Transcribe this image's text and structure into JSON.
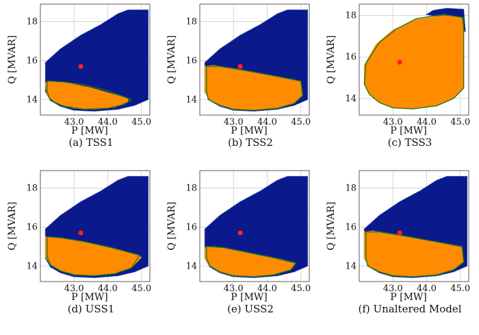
{
  "figure": {
    "colors": {
      "region": "#0a1a8c",
      "feasible": "#ff8c00",
      "hull": "#1f7a1f",
      "operating_point": "#ff2020",
      "grid": "#cccccc"
    }
  },
  "chart_data": [
    {
      "type": "scatter",
      "caption": "(a) TSS1",
      "xlabel": "P [MW]",
      "ylabel": "Q [MVAR]",
      "xticks": [
        "43.0",
        "44.0",
        "45.0"
      ],
      "yticks": [
        "14",
        "16",
        "18"
      ],
      "xlim": [
        42.0,
        45.25
      ],
      "ylim": [
        13.2,
        18.9
      ],
      "grid": true,
      "operating_point": {
        "x": 43.2,
        "y": 15.7
      },
      "outer_region": [
        [
          42.15,
          15.45
        ],
        [
          42.15,
          15.9
        ],
        [
          42.6,
          16.6
        ],
        [
          43.2,
          17.3
        ],
        [
          43.8,
          17.85
        ],
        [
          44.3,
          18.4
        ],
        [
          44.6,
          18.6
        ],
        [
          45.2,
          18.6
        ],
        [
          45.2,
          14.0
        ],
        [
          44.8,
          13.7
        ],
        [
          44.3,
          13.5
        ],
        [
          43.6,
          13.4
        ],
        [
          43.0,
          13.45
        ],
        [
          42.6,
          13.65
        ],
        [
          42.3,
          13.95
        ],
        [
          42.15,
          14.4
        ]
      ],
      "feasible_region": [
        [
          42.15,
          14.85
        ],
        [
          42.3,
          14.95
        ],
        [
          42.8,
          14.85
        ],
        [
          43.5,
          14.6
        ],
        [
          44.1,
          14.3
        ],
        [
          44.6,
          14.05
        ],
        [
          44.6,
          13.9
        ],
        [
          44.2,
          13.6
        ],
        [
          43.6,
          13.5
        ],
        [
          43.0,
          13.55
        ],
        [
          42.5,
          13.8
        ],
        [
          42.2,
          14.2
        ]
      ],
      "hull": [
        [
          42.2,
          14.95
        ],
        [
          42.7,
          14.9
        ],
        [
          43.3,
          14.75
        ],
        [
          44.0,
          14.45
        ],
        [
          44.7,
          14.0
        ],
        [
          44.5,
          13.75
        ],
        [
          44.0,
          13.55
        ],
        [
          43.3,
          13.5
        ],
        [
          42.7,
          13.65
        ],
        [
          42.3,
          13.95
        ],
        [
          42.2,
          14.4
        ]
      ]
    },
    {
      "type": "scatter",
      "caption": "(b) TSS2",
      "xlabel": "P [MW]",
      "ylabel": "Q [MVAR]",
      "xticks": [
        "43.0",
        "44.0",
        "45.0"
      ],
      "yticks": [
        "14",
        "16",
        "18"
      ],
      "xlim": [
        42.0,
        45.25
      ],
      "ylim": [
        13.2,
        18.9
      ],
      "grid": true,
      "operating_point": {
        "x": 43.2,
        "y": 15.7
      },
      "outer_region": [
        [
          42.15,
          15.45
        ],
        [
          42.15,
          15.9
        ],
        [
          42.6,
          16.6
        ],
        [
          43.2,
          17.3
        ],
        [
          43.8,
          17.85
        ],
        [
          44.3,
          18.4
        ],
        [
          44.6,
          18.6
        ],
        [
          45.2,
          18.6
        ],
        [
          45.2,
          14.0
        ],
        [
          44.8,
          13.7
        ],
        [
          44.3,
          13.5
        ],
        [
          43.6,
          13.4
        ],
        [
          43.0,
          13.45
        ],
        [
          42.6,
          13.65
        ],
        [
          42.3,
          13.95
        ],
        [
          42.15,
          14.4
        ]
      ],
      "feasible_region": [
        [
          42.15,
          15.7
        ],
        [
          42.4,
          15.75
        ],
        [
          43.0,
          15.6
        ],
        [
          43.8,
          15.35
        ],
        [
          44.5,
          15.1
        ],
        [
          45.0,
          14.9
        ],
        [
          45.05,
          14.2
        ],
        [
          44.8,
          13.8
        ],
        [
          44.3,
          13.55
        ],
        [
          43.6,
          13.45
        ],
        [
          43.0,
          13.5
        ],
        [
          42.6,
          13.7
        ],
        [
          42.3,
          14.0
        ],
        [
          42.15,
          14.4
        ]
      ],
      "hull": [
        [
          42.2,
          15.7
        ],
        [
          42.6,
          15.7
        ],
        [
          43.3,
          15.5
        ],
        [
          44.1,
          15.25
        ],
        [
          45.0,
          14.95
        ],
        [
          45.05,
          14.2
        ],
        [
          44.8,
          13.8
        ],
        [
          44.3,
          13.55
        ],
        [
          43.6,
          13.45
        ],
        [
          43.0,
          13.5
        ],
        [
          42.6,
          13.7
        ],
        [
          42.25,
          14.0
        ],
        [
          42.2,
          14.4
        ]
      ]
    },
    {
      "type": "scatter",
      "caption": "(c) TSS3",
      "xlabel": "P [MW]",
      "ylabel": "Q [MVAR]",
      "xticks": [
        "43.0",
        "44.0",
        "45.0"
      ],
      "yticks": [
        "14",
        "16",
        "18"
      ],
      "xlim": [
        42.0,
        45.25
      ],
      "ylim": [
        13.2,
        18.55
      ],
      "grid": true,
      "operating_point": {
        "x": 43.2,
        "y": 15.75
      },
      "outer_region": [
        [
          44.0,
          18.05
        ],
        [
          44.2,
          18.25
        ],
        [
          44.6,
          18.35
        ],
        [
          45.1,
          18.3
        ],
        [
          45.15,
          17.2
        ],
        [
          44.9,
          17.8
        ]
      ],
      "feasible_region": [
        [
          42.15,
          14.7
        ],
        [
          42.15,
          15.6
        ],
        [
          42.5,
          16.6
        ],
        [
          43.0,
          17.3
        ],
        [
          43.7,
          17.8
        ],
        [
          44.5,
          18.0
        ],
        [
          45.05,
          17.9
        ],
        [
          45.1,
          17.0
        ],
        [
          45.1,
          14.5
        ],
        [
          44.8,
          14.0
        ],
        [
          44.3,
          13.65
        ],
        [
          43.6,
          13.5
        ],
        [
          43.0,
          13.55
        ],
        [
          42.6,
          13.8
        ],
        [
          42.3,
          14.2
        ]
      ],
      "hull": [
        [
          42.15,
          14.7
        ],
        [
          42.2,
          15.7
        ],
        [
          42.6,
          16.7
        ],
        [
          43.1,
          17.35
        ],
        [
          43.7,
          17.85
        ],
        [
          44.5,
          18.05
        ],
        [
          45.1,
          17.9
        ],
        [
          45.1,
          14.5
        ],
        [
          44.8,
          14.0
        ],
        [
          44.3,
          13.65
        ],
        [
          43.6,
          13.5
        ],
        [
          43.0,
          13.55
        ],
        [
          42.6,
          13.8
        ],
        [
          42.3,
          14.2
        ]
      ]
    },
    {
      "type": "scatter",
      "caption": "(d) USS1",
      "xlabel": "P [MW]",
      "ylabel": "Q [MVAR]",
      "xticks": [
        "43.0",
        "44.0",
        "45.0"
      ],
      "yticks": [
        "14",
        "16",
        "18"
      ],
      "xlim": [
        42.0,
        45.25
      ],
      "ylim": [
        13.2,
        18.9
      ],
      "grid": true,
      "operating_point": {
        "x": 43.2,
        "y": 15.7
      },
      "outer_region": [
        [
          42.15,
          15.45
        ],
        [
          42.15,
          15.9
        ],
        [
          42.6,
          16.6
        ],
        [
          43.2,
          17.3
        ],
        [
          43.8,
          17.85
        ],
        [
          44.3,
          18.4
        ],
        [
          44.6,
          18.6
        ],
        [
          45.2,
          18.6
        ],
        [
          45.2,
          14.0
        ],
        [
          44.8,
          13.7
        ],
        [
          44.3,
          13.5
        ],
        [
          43.6,
          13.4
        ],
        [
          43.0,
          13.45
        ],
        [
          42.6,
          13.65
        ],
        [
          42.3,
          13.95
        ],
        [
          42.15,
          14.4
        ]
      ],
      "feasible_region": [
        [
          42.15,
          15.5
        ],
        [
          42.5,
          15.45
        ],
        [
          43.2,
          15.25
        ],
        [
          44.0,
          14.95
        ],
        [
          44.8,
          14.6
        ],
        [
          45.0,
          14.45
        ],
        [
          44.7,
          13.9
        ],
        [
          44.2,
          13.6
        ],
        [
          43.6,
          13.5
        ],
        [
          43.0,
          13.55
        ],
        [
          42.6,
          13.75
        ],
        [
          42.3,
          14.05
        ],
        [
          42.15,
          14.5
        ]
      ],
      "hull": [
        [
          42.2,
          15.5
        ],
        [
          42.6,
          15.45
        ],
        [
          43.3,
          15.25
        ],
        [
          44.1,
          14.95
        ],
        [
          44.95,
          14.55
        ],
        [
          44.7,
          13.9
        ],
        [
          44.2,
          13.6
        ],
        [
          43.6,
          13.5
        ],
        [
          43.0,
          13.55
        ],
        [
          42.6,
          13.75
        ],
        [
          42.3,
          14.05
        ],
        [
          42.2,
          14.5
        ]
      ]
    },
    {
      "type": "scatter",
      "caption": "(e) USS2",
      "xlabel": "P [MW]",
      "ylabel": "Q [MVAR]",
      "xticks": [
        "43.0",
        "44.0",
        "45.0"
      ],
      "yticks": [
        "14",
        "16",
        "18"
      ],
      "xlim": [
        42.0,
        45.25
      ],
      "ylim": [
        13.2,
        18.9
      ],
      "grid": true,
      "operating_point": {
        "x": 43.2,
        "y": 15.7
      },
      "outer_region": [
        [
          42.15,
          15.45
        ],
        [
          42.15,
          15.9
        ],
        [
          42.6,
          16.6
        ],
        [
          43.2,
          17.3
        ],
        [
          43.8,
          17.85
        ],
        [
          44.3,
          18.4
        ],
        [
          44.6,
          18.6
        ],
        [
          45.2,
          18.6
        ],
        [
          45.2,
          14.0
        ],
        [
          44.8,
          13.7
        ],
        [
          44.3,
          13.5
        ],
        [
          43.6,
          13.4
        ],
        [
          43.0,
          13.45
        ],
        [
          42.6,
          13.65
        ],
        [
          42.3,
          13.95
        ],
        [
          42.15,
          14.4
        ]
      ],
      "feasible_region": [
        [
          42.15,
          14.95
        ],
        [
          42.4,
          15.0
        ],
        [
          43.0,
          14.85
        ],
        [
          43.7,
          14.6
        ],
        [
          44.4,
          14.35
        ],
        [
          44.85,
          14.15
        ],
        [
          44.7,
          13.8
        ],
        [
          44.2,
          13.55
        ],
        [
          43.6,
          13.45
        ],
        [
          43.0,
          13.5
        ],
        [
          42.6,
          13.7
        ],
        [
          42.3,
          14.0
        ],
        [
          42.15,
          14.4
        ]
      ],
      "hull": [
        [
          42.2,
          15.0
        ],
        [
          42.7,
          14.95
        ],
        [
          43.4,
          14.7
        ],
        [
          44.1,
          14.45
        ],
        [
          44.85,
          14.15
        ],
        [
          44.7,
          13.8
        ],
        [
          44.2,
          13.55
        ],
        [
          43.6,
          13.45
        ],
        [
          43.0,
          13.5
        ],
        [
          42.6,
          13.7
        ],
        [
          42.3,
          14.0
        ],
        [
          42.2,
          14.4
        ]
      ]
    },
    {
      "type": "scatter",
      "caption": "(f) Unaltered Model",
      "xlabel": "P [MW]",
      "ylabel": "Q [MVAR]",
      "xticks": [
        "43.0",
        "44.0",
        "45.0"
      ],
      "yticks": [
        "14",
        "16",
        "18"
      ],
      "xlim": [
        42.0,
        45.25
      ],
      "ylim": [
        13.2,
        18.9
      ],
      "grid": true,
      "operating_point": {
        "x": 43.2,
        "y": 15.7
      },
      "outer_region": [
        [
          42.15,
          15.45
        ],
        [
          42.15,
          15.9
        ],
        [
          42.6,
          16.6
        ],
        [
          43.2,
          17.3
        ],
        [
          43.8,
          17.85
        ],
        [
          44.3,
          18.4
        ],
        [
          44.6,
          18.6
        ],
        [
          45.2,
          18.6
        ],
        [
          45.2,
          14.0
        ],
        [
          44.8,
          13.7
        ],
        [
          44.3,
          13.5
        ],
        [
          43.6,
          13.4
        ],
        [
          43.0,
          13.45
        ],
        [
          42.6,
          13.65
        ],
        [
          42.3,
          13.95
        ],
        [
          42.15,
          14.4
        ]
      ],
      "feasible_region": [
        [
          42.15,
          15.75
        ],
        [
          42.4,
          15.8
        ],
        [
          43.0,
          15.65
        ],
        [
          43.8,
          15.4
        ],
        [
          44.5,
          15.15
        ],
        [
          45.05,
          14.95
        ],
        [
          45.1,
          14.2
        ],
        [
          44.8,
          13.8
        ],
        [
          44.3,
          13.55
        ],
        [
          43.6,
          13.45
        ],
        [
          43.0,
          13.5
        ],
        [
          42.6,
          13.7
        ],
        [
          42.3,
          14.0
        ],
        [
          42.15,
          14.4
        ]
      ],
      "hull": [
        [
          42.2,
          15.75
        ],
        [
          42.6,
          15.75
        ],
        [
          43.3,
          15.55
        ],
        [
          44.1,
          15.3
        ],
        [
          45.05,
          15.0
        ],
        [
          45.1,
          14.2
        ],
        [
          44.8,
          13.8
        ],
        [
          44.3,
          13.55
        ],
        [
          43.6,
          13.45
        ],
        [
          43.0,
          13.5
        ],
        [
          42.6,
          13.7
        ],
        [
          42.25,
          14.0
        ],
        [
          42.2,
          14.4
        ]
      ]
    }
  ]
}
